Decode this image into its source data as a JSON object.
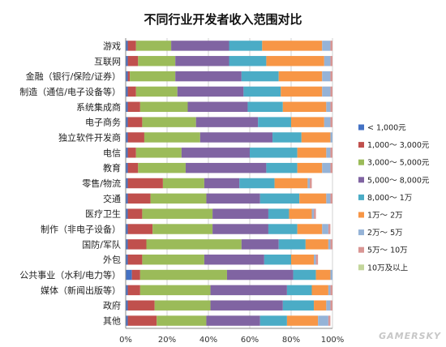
{
  "chart_data": {
    "type": "bar",
    "orientation": "horizontal",
    "stacked": true,
    "percent_stacked": true,
    "title": "不同行业开发者收入范围对比",
    "categories": [
      "游戏",
      "互联网",
      "金融（银行/保险/证券）",
      "制造（通信/电子设备等）",
      "系统集成商",
      "电子商务",
      "独立软件开发商",
      "电信",
      "教育",
      "零售/物流",
      "交通",
      "医疗卫生",
      "制作（非电子设备）",
      "国防/军队",
      "外包",
      "公共事业（水利/电力等）",
      "媒体（新闻出版等）",
      "政府",
      "其他"
    ],
    "xlim": [
      0,
      100
    ],
    "x_ticks": [
      "0%",
      "20%",
      "40%",
      "60%",
      "80%",
      "100%"
    ],
    "grid": true,
    "legend_position": "right",
    "series": [
      {
        "name": "< 1,000元",
        "color": "#4472c4",
        "values": [
          1,
          1,
          1,
          1,
          1,
          1,
          1,
          1,
          1,
          1,
          1,
          1,
          1,
          1,
          1,
          3,
          1,
          1,
          1
        ]
      },
      {
        "name": "1,000～ 3,000元",
        "color": "#c0504d",
        "values": [
          4,
          5,
          1,
          4,
          6,
          7,
          8,
          4,
          5,
          17,
          11,
          7,
          12,
          9,
          7,
          4,
          6,
          13,
          14
        ]
      },
      {
        "name": "3,000～ 5,000元",
        "color": "#9bbb59",
        "values": [
          17,
          18,
          22,
          20,
          23,
          26,
          27,
          22,
          23,
          20,
          27,
          34,
          29,
          46,
          30,
          42,
          34,
          27,
          24
        ]
      },
      {
        "name": "5,000～ 8,000元",
        "color": "#8064a2",
        "values": [
          28,
          26,
          32,
          32,
          29,
          30,
          35,
          33,
          39,
          17,
          26,
          27,
          27,
          18,
          29,
          32,
          37,
          35,
          26
        ]
      },
      {
        "name": "8,000～ 1万",
        "color": "#4bacc6",
        "values": [
          16,
          18,
          18,
          18,
          17,
          16,
          14,
          23,
          15,
          17,
          19,
          10,
          14,
          13,
          13,
          11,
          12,
          15,
          13
        ]
      },
      {
        "name": "1万～ 2万",
        "color": "#f79646",
        "values": [
          29,
          28,
          21,
          20,
          21,
          16,
          14,
          14,
          12,
          16,
          13,
          11,
          12,
          11,
          11,
          7,
          8,
          6,
          15
        ]
      },
      {
        "name": "2万～ 5万",
        "color": "#95b3d7",
        "values": [
          4,
          3,
          4,
          4,
          2,
          3,
          1,
          2,
          4,
          1,
          2,
          1,
          3,
          1,
          1,
          1,
          1,
          2,
          5
        ]
      },
      {
        "name": "5万～ 10万",
        "color": "#d99694",
        "values": [
          1,
          1,
          1,
          1,
          1,
          1,
          0,
          1,
          1,
          1,
          1,
          1,
          1,
          1,
          1,
          0,
          1,
          1,
          1
        ]
      },
      {
        "name": "10万及以上",
        "color": "#c3d69b",
        "values": [
          0,
          0,
          0,
          0,
          0,
          0,
          0,
          0,
          0,
          0,
          0,
          0,
          0,
          0,
          0,
          0,
          0,
          0,
          0
        ]
      }
    ]
  },
  "watermark": "GAMERSKY"
}
